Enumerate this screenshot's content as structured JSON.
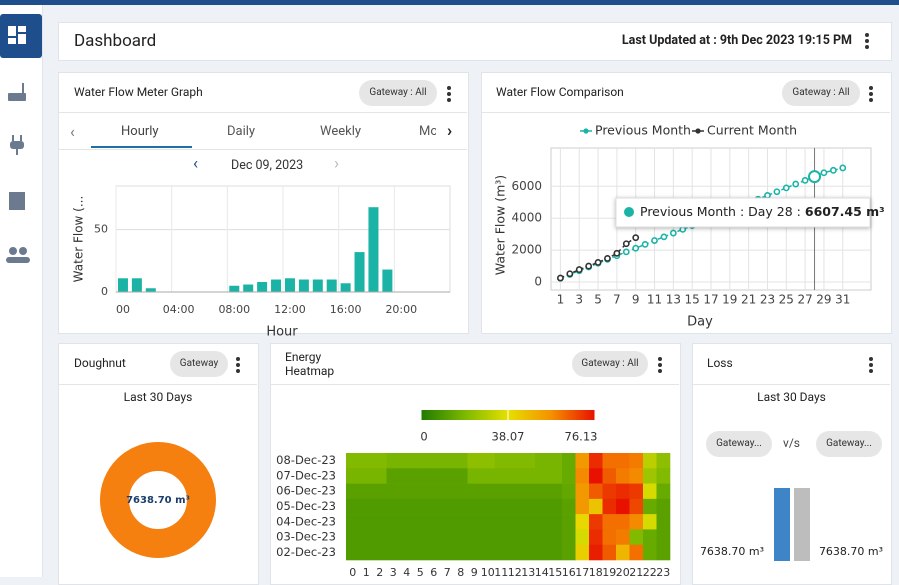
{
  "header": {
    "title": "Dashboard",
    "last_updated": "Last Updated at : 9th Dec 2023 19:15 PM"
  },
  "flow_meter": {
    "title": "Water Flow Meter Graph",
    "gateway": "Gateway : All",
    "tabs": [
      "Hourly",
      "Daily",
      "Weekly",
      "Mo"
    ],
    "date": "Dec 09, 2023",
    "chart_data": {
      "type": "bar",
      "categories": [
        "00",
        null,
        null,
        null,
        "04:00",
        null,
        null,
        null,
        "08:00",
        null,
        null,
        null,
        "12:00",
        null,
        null,
        null,
        "16:00",
        null,
        null,
        null,
        "20:00",
        null,
        null,
        null
      ],
      "values": [
        11,
        11,
        3,
        0,
        0,
        0,
        0,
        0,
        5,
        6,
        8,
        10,
        11,
        10,
        10,
        10,
        7,
        32,
        68,
        18,
        0,
        0,
        0,
        0
      ],
      "color": "#1ab3a6",
      "ylabel": "Water Flow (...",
      "xlabel": "Hour",
      "ylim": [
        0,
        85
      ],
      "yticks": [
        0,
        50
      ],
      "grid": true
    }
  },
  "comparison": {
    "title": "Water Flow Comparison",
    "gateway": "Gateway : All",
    "tooltip": {
      "label": "Previous Month : Day 28 :",
      "value": "6607.45 m³"
    },
    "chart_data": {
      "type": "line",
      "x": [
        1,
        2,
        3,
        4,
        5,
        6,
        7,
        8,
        9,
        10,
        11,
        12,
        13,
        14,
        15,
        16,
        17,
        18,
        19,
        20,
        21,
        22,
        23,
        24,
        25,
        26,
        27,
        28,
        29,
        30,
        31
      ],
      "series": [
        {
          "name": "Previous Month",
          "color": "#1ab3a6",
          "values": [
            240,
            470,
            710,
            940,
            1180,
            1420,
            1650,
            1890,
            2120,
            2360,
            2600,
            2830,
            3070,
            3300,
            3540,
            3780,
            4010,
            4250,
            4480,
            4720,
            4960,
            5190,
            5430,
            5660,
            5900,
            6140,
            6370,
            6607.45,
            6850,
            7000,
            7150
          ]
        },
        {
          "name": "Current Month",
          "color": "#333333",
          "values": [
            250,
            520,
            780,
            1000,
            1230,
            1480,
            1800,
            2400,
            2780,
            null,
            null,
            null,
            null,
            null,
            null,
            null,
            null,
            null,
            null,
            null,
            null,
            null,
            null,
            null,
            null,
            null,
            null,
            null,
            null,
            null,
            null
          ]
        }
      ],
      "ylabel": "Water Flow (m³)",
      "xlabel": "Day",
      "xlim": [
        0,
        34
      ],
      "xticks": [
        1,
        3,
        5,
        7,
        9,
        11,
        13,
        15,
        17,
        19,
        21,
        23,
        25,
        27,
        29,
        31
      ],
      "ylim": [
        -500,
        8400
      ],
      "yticks": [
        0,
        2000,
        4000,
        6000
      ],
      "grid": true,
      "legend": "top"
    }
  },
  "doughnut": {
    "title": "Doughnut",
    "gateway": "Gateway",
    "subtitle": "Last 30 Days",
    "chart_data": {
      "type": "pie",
      "values": [
        7638.7
      ],
      "value_labels": [
        "7638.70 m³"
      ],
      "color": "#f57f0f"
    }
  },
  "heatmap": {
    "title": [
      "Energy",
      "Heatmap"
    ],
    "gateway": "Gateway : All",
    "chart_data": {
      "type": "heatmap",
      "rows": [
        "08-Dec-23",
        "07-Dec-23",
        "06-Dec-23",
        "05-Dec-23",
        "04-Dec-23",
        "03-Dec-23",
        "02-Dec-23"
      ],
      "columns": [
        0,
        1,
        2,
        3,
        4,
        5,
        6,
        7,
        8,
        9,
        10,
        11,
        12,
        13,
        14,
        15,
        16,
        17,
        18,
        19,
        20,
        21,
        22,
        23
      ],
      "values": [
        [
          20,
          20,
          20,
          18,
          18,
          18,
          18,
          18,
          18,
          22,
          22,
          20,
          20,
          20,
          18,
          18,
          15,
          55,
          72,
          62,
          62,
          60,
          30,
          22
        ],
        [
          18,
          18,
          18,
          12,
          12,
          12,
          12,
          12,
          12,
          18,
          18,
          18,
          18,
          18,
          18,
          18,
          15,
          58,
          76,
          65,
          60,
          58,
          25,
          20
        ],
        [
          12,
          12,
          12,
          12,
          12,
          12,
          12,
          12,
          12,
          12,
          12,
          12,
          12,
          12,
          12,
          12,
          14,
          55,
          65,
          70,
          72,
          70,
          35,
          15
        ],
        [
          10,
          10,
          10,
          10,
          10,
          10,
          10,
          10,
          10,
          10,
          10,
          10,
          10,
          10,
          10,
          10,
          12,
          55,
          45,
          72,
          76,
          68,
          15,
          12
        ],
        [
          10,
          10,
          10,
          10,
          10,
          10,
          10,
          10,
          10,
          10,
          10,
          10,
          10,
          10,
          10,
          10,
          12,
          40,
          70,
          62,
          62,
          58,
          35,
          12
        ],
        [
          10,
          10,
          10,
          10,
          10,
          10,
          10,
          10,
          10,
          10,
          10,
          10,
          10,
          10,
          10,
          10,
          12,
          35,
          72,
          62,
          60,
          20,
          15,
          12
        ],
        [
          10,
          10,
          10,
          10,
          10,
          10,
          10,
          10,
          10,
          10,
          10,
          10,
          10,
          10,
          10,
          10,
          12,
          42,
          74,
          65,
          48,
          62,
          15,
          12
        ]
      ],
      "colorbar_ticks": [
        0,
        38.07,
        76.13
      ],
      "colors": [
        "#1f7a00",
        "#7cb800",
        "#e6e000",
        "#f59000",
        "#e81000"
      ]
    }
  },
  "loss": {
    "title": "Loss",
    "subtitle": "Last 30 Days",
    "left": "Gateway...",
    "vs": "v/s",
    "right": "Gateway...",
    "chart_data": {
      "type": "bar",
      "values": [
        7638.7,
        7638.7
      ],
      "value_labels": [
        "7638.70 m³",
        "7638.70 m³"
      ],
      "colors": [
        "#3d85c6",
        "#bdbdbd"
      ]
    }
  }
}
